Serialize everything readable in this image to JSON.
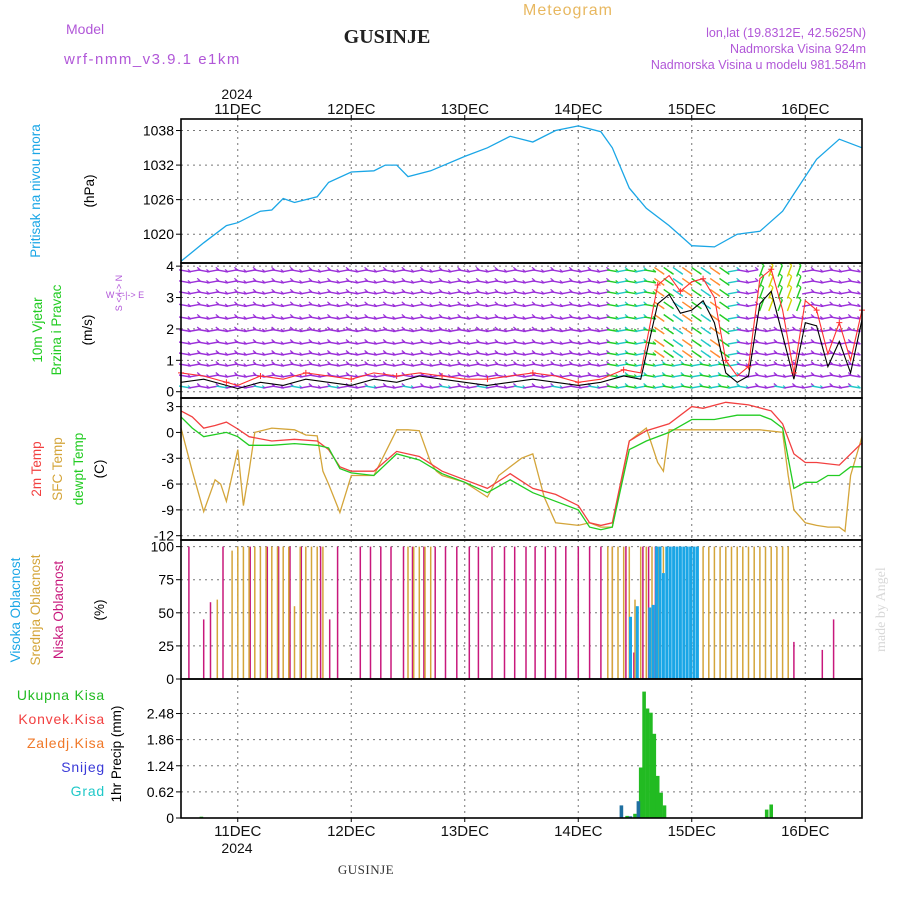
{
  "header": {
    "title": "GUSINJE",
    "model_label": "Model",
    "model_name": "wrf-nmm_v3.9.1  e1km",
    "meteogram_label": "Meteogram",
    "coords": "lon,lat (19.8312E, 42.5625N)",
    "elevation": "Nadmorska Visina 924m",
    "model_elevation": "Nadmorska Visina u modelu 981.584m"
  },
  "footer": {
    "location": "GUSINJE",
    "watermark": "made by Angel"
  },
  "colors": {
    "pressure": "#1aa6e6",
    "wind_speed": "#000000",
    "wind_gust": "#ff3030",
    "wind_barbs": "#9b30d9",
    "temp_2m": "#f24040",
    "temp_sfc": "#d4a53a",
    "dewpoint": "#22cc22",
    "cloud_high": "#1aa6e6",
    "cloud_mid": "#d4a53a",
    "cloud_low": "#c8187c",
    "precip_total": "#22bb22",
    "precip_conv": "#f24040",
    "precip_frozen": "#f07828",
    "precip_snow": "#3a3ad8",
    "precip_grad": "#20c8c8"
  },
  "chart_data": [
    {
      "type": "line",
      "panel": "pressure",
      "ylabel_main": "Pritisak na nivou mora",
      "ylabel_unit": "(hPa)",
      "ylim": [
        1015,
        1040
      ],
      "yticks": [
        1020,
        1026,
        1032,
        1038
      ],
      "x_range_days": [
        10.5,
        16.5
      ],
      "series": [
        {
          "x": [
            10.5,
            10.7,
            10.9,
            11.0,
            11.2,
            11.3,
            11.4,
            11.5,
            11.7,
            11.8,
            12.0,
            12.2,
            12.3,
            12.4,
            12.5,
            12.7,
            13.0,
            13.2,
            13.4,
            13.6,
            13.8,
            14.0,
            14.2,
            14.3,
            14.45,
            14.6,
            14.8,
            15.0,
            15.2,
            15.4,
            15.6,
            15.8,
            15.9,
            16.1,
            16.3,
            16.5
          ],
          "y": [
            1015.3,
            1018.5,
            1021.5,
            1022,
            1024,
            1024.2,
            1026.2,
            1025.5,
            1026.5,
            1029,
            1030.8,
            1031,
            1032,
            1032,
            1030,
            1031,
            1033.5,
            1035,
            1037,
            1036,
            1038,
            1038.8,
            1037.8,
            1035,
            1028,
            1024.5,
            1021.5,
            1018,
            1017.8,
            1020,
            1020.5,
            1024,
            1027,
            1033,
            1036.5,
            1035
          ]
        }
      ]
    },
    {
      "type": "line",
      "panel": "wind",
      "ylabel_main": "10m Vjetar",
      "ylabel_sub": "Brzina i Pravac",
      "ylabel_unit": "(m/s)",
      "compass": "W <-|-> E",
      "compass_vertical": "S <-|-> N",
      "ylim": [
        -0.2,
        4.1
      ],
      "yticks": [
        0,
        1,
        2,
        3,
        4
      ],
      "x_range_days": [
        10.5,
        16.5
      ],
      "barb_rows": [
        0.15,
        0.5,
        0.85,
        1.2,
        1.55,
        1.95,
        2.35,
        2.75,
        3.15,
        3.5,
        3.85
      ],
      "series": [
        {
          "name": "speed",
          "x": [
            10.5,
            10.7,
            10.9,
            11.0,
            11.2,
            11.4,
            11.6,
            11.8,
            12.0,
            12.2,
            12.4,
            12.6,
            12.8,
            13.0,
            13.2,
            13.4,
            13.6,
            13.8,
            14.0,
            14.2,
            14.4,
            14.55,
            14.7,
            14.8,
            14.9,
            15.0,
            15.1,
            15.2,
            15.3,
            15.4,
            15.5,
            15.6,
            15.7,
            15.8,
            15.9,
            16.0,
            16.1,
            16.2,
            16.3,
            16.4,
            16.5
          ],
          "y": [
            0.3,
            0.4,
            0.2,
            0.1,
            0.3,
            0.2,
            0.4,
            0.3,
            0.2,
            0.4,
            0.3,
            0.5,
            0.4,
            0.3,
            0.2,
            0.3,
            0.4,
            0.3,
            0.2,
            0.3,
            0.5,
            0.4,
            2.8,
            3.1,
            2.5,
            2.6,
            2.9,
            2.2,
            0.6,
            0.3,
            0.5,
            2.8,
            3.2,
            1.8,
            0.4,
            2.2,
            2.1,
            0.8,
            1.6,
            0.6,
            2.3
          ]
        },
        {
          "name": "gust",
          "x": [
            10.5,
            10.7,
            10.9,
            11.0,
            11.2,
            11.4,
            11.6,
            11.8,
            12.0,
            12.2,
            12.4,
            12.6,
            12.8,
            13.0,
            13.2,
            13.4,
            13.6,
            13.8,
            14.0,
            14.2,
            14.4,
            14.55,
            14.7,
            14.8,
            14.9,
            15.0,
            15.1,
            15.2,
            15.3,
            15.4,
            15.5,
            15.6,
            15.7,
            15.8,
            15.9,
            16.0,
            16.1,
            16.2,
            16.3,
            16.4,
            16.5
          ],
          "y": [
            0.6,
            0.5,
            0.3,
            0.2,
            0.5,
            0.4,
            0.6,
            0.5,
            0.4,
            0.6,
            0.5,
            0.6,
            0.5,
            0.4,
            0.4,
            0.5,
            0.6,
            0.5,
            0.3,
            0.4,
            0.7,
            0.6,
            3.4,
            3.7,
            3.2,
            3.5,
            3.6,
            3.0,
            1.0,
            0.5,
            0.8,
            3.6,
            3.9,
            2.6,
            0.6,
            2.9,
            2.6,
            1.2,
            2.2,
            1.0,
            2.6
          ]
        }
      ]
    },
    {
      "type": "line",
      "panel": "temperature",
      "ylabel_lines": [
        "2m Temp",
        "SFC Temp",
        "dewpt Temp"
      ],
      "ylabel_unit": "(C)",
      "ylim": [
        -12.5,
        4
      ],
      "yticks": [
        -12,
        -9,
        -6,
        -3,
        0,
        3
      ],
      "x_range_days": [
        10.5,
        16.5
      ],
      "series": [
        {
          "name": "2m Temp",
          "x": [
            10.5,
            10.6,
            10.7,
            10.8,
            10.9,
            11.0,
            11.1,
            11.3,
            11.5,
            11.7,
            11.8,
            11.9,
            12.0,
            12.2,
            12.4,
            12.6,
            12.8,
            13.0,
            13.2,
            13.4,
            13.6,
            13.8,
            14.0,
            14.1,
            14.2,
            14.3,
            14.45,
            14.6,
            14.8,
            15.0,
            15.1,
            15.3,
            15.5,
            15.7,
            15.8,
            15.9,
            16.0,
            16.1,
            16.3,
            16.5
          ],
          "y": [
            2.5,
            1.8,
            0.5,
            0.8,
            1.2,
            0.4,
            -0.5,
            -1.0,
            -0.8,
            -1.0,
            -2.0,
            -4.0,
            -4.5,
            -4.5,
            -2.2,
            -2.8,
            -4.5,
            -5.5,
            -6.5,
            -4.8,
            -6.5,
            -7.2,
            -8.5,
            -10.5,
            -10.8,
            -10.5,
            -1.0,
            0.2,
            1.0,
            3.0,
            2.8,
            3.5,
            3.2,
            2.5,
            1.0,
            -2.5,
            -3.5,
            -3.5,
            -3.8,
            -1.2
          ]
        },
        {
          "name": "SFC Temp",
          "x": [
            10.5,
            10.6,
            10.7,
            10.8,
            10.85,
            10.9,
            11.0,
            11.05,
            11.1,
            11.15,
            11.3,
            11.5,
            11.6,
            11.7,
            11.75,
            11.8,
            11.9,
            12.0,
            12.2,
            12.4,
            12.5,
            12.6,
            12.7,
            12.75,
            12.8,
            13.0,
            13.2,
            13.3,
            13.5,
            13.6,
            13.65,
            13.7,
            13.8,
            14.0,
            14.1,
            14.2,
            14.3,
            14.45,
            14.6,
            14.7,
            14.75,
            14.8,
            15.0,
            15.2,
            15.4,
            15.6,
            15.8,
            15.85,
            15.9,
            16.0,
            16.1,
            16.2,
            16.3,
            16.35,
            16.4,
            16.5
          ],
          "y": [
            0.5,
            -4.5,
            -9.2,
            -5.5,
            -6.0,
            -8.0,
            -2.0,
            -8.5,
            -4.5,
            0.0,
            0.5,
            0.3,
            -0.3,
            -0.4,
            -4.5,
            -6.0,
            -9.3,
            -5.0,
            -5.0,
            0.3,
            0.3,
            0.2,
            -3.5,
            -4.5,
            -5.0,
            -5.8,
            -7.5,
            -5.0,
            -3.0,
            -2.5,
            -5.0,
            -7.5,
            -10.5,
            -10.8,
            -10.5,
            -11.0,
            -11.0,
            -1.0,
            0.5,
            -3.5,
            -4.5,
            0.3,
            0.3,
            0.3,
            0.3,
            0.3,
            0.0,
            -5.0,
            -9.0,
            -10.5,
            -10.8,
            -11.0,
            -11.0,
            -11.5,
            -5.0,
            -0.5
          ]
        },
        {
          "name": "dewpt Temp",
          "x": [
            10.5,
            10.6,
            10.7,
            10.9,
            11.0,
            11.1,
            11.3,
            11.5,
            11.7,
            11.8,
            11.9,
            12.0,
            12.2,
            12.4,
            12.6,
            12.8,
            13.0,
            13.2,
            13.4,
            13.6,
            13.8,
            14.0,
            14.1,
            14.2,
            14.3,
            14.45,
            14.6,
            14.8,
            15.0,
            15.2,
            15.4,
            15.6,
            15.7,
            15.8,
            15.85,
            15.9,
            16.0,
            16.1,
            16.2,
            16.3,
            16.4,
            16.5
          ],
          "y": [
            1.8,
            0.5,
            -0.5,
            0.0,
            -0.5,
            -1.5,
            -1.5,
            -1.3,
            -1.5,
            -1.8,
            -4.2,
            -4.7,
            -5.0,
            -2.5,
            -3.2,
            -4.8,
            -5.8,
            -7.0,
            -5.5,
            -7.0,
            -8.0,
            -9.0,
            -11.0,
            -11.3,
            -11.0,
            -2.0,
            -1.0,
            0.0,
            1.5,
            1.5,
            2.0,
            2.0,
            1.5,
            0.5,
            -3.0,
            -6.5,
            -5.8,
            -5.8,
            -5.0,
            -5.0,
            -4.0,
            -4.0
          ]
        }
      ]
    },
    {
      "type": "bar",
      "panel": "clouds",
      "ylabel_lines": [
        "Visoka Oblacnost",
        "Srednja Oblacnost",
        "Niska Oblacnost"
      ],
      "ylabel_unit": "(%)",
      "ylim": [
        0,
        105
      ],
      "yticks": [
        0,
        25,
        50,
        75,
        100
      ],
      "x_range_days": [
        10.5,
        16.5
      ],
      "series": [
        {
          "name": "Niska Oblacnost",
          "x": [
            10.57,
            10.7,
            10.76,
            10.87,
            11.11,
            11.26,
            11.36,
            11.46,
            11.56,
            11.73,
            11.81,
            11.88,
            12.08,
            12.17,
            12.26,
            12.35,
            12.46,
            12.54,
            12.64,
            12.74,
            12.83,
            12.93,
            13.04,
            13.12,
            13.24,
            13.35,
            13.44,
            13.54,
            13.62,
            13.71,
            13.8,
            13.89,
            14.0,
            14.1,
            14.2,
            14.3,
            14.42,
            14.49,
            14.57,
            14.62,
            14.68,
            14.84,
            15.9,
            16.15,
            16.25
          ],
          "values": [
            100,
            45,
            58,
            100,
            100,
            100,
            100,
            100,
            100,
            100,
            45,
            100,
            100,
            100,
            100,
            100,
            100,
            100,
            100,
            100,
            100,
            100,
            100,
            100,
            100,
            100,
            100,
            100,
            100,
            100,
            100,
            100,
            100,
            100,
            100,
            100,
            100,
            20,
            100,
            100,
            100,
            100,
            28,
            22,
            45
          ]
        },
        {
          "name": "Srednja Oblacnost",
          "x": [
            10.82,
            10.95,
            11.0,
            11.05,
            11.1,
            11.15,
            11.2,
            11.25,
            11.3,
            11.35,
            11.4,
            11.45,
            11.5,
            11.55,
            11.6,
            11.65,
            11.7,
            11.75,
            12.5,
            12.55,
            12.6,
            12.65,
            12.7,
            14.26,
            14.3,
            14.35,
            14.4,
            14.45,
            14.5,
            14.55,
            14.6,
            14.65,
            14.7,
            14.75,
            15.05,
            15.1,
            15.15,
            15.2,
            15.25,
            15.3,
            15.35,
            15.4,
            15.45,
            15.5,
            15.55,
            15.6,
            15.65,
            15.7,
            15.75,
            15.8,
            15.85
          ],
          "values": [
            60,
            97,
            100,
            100,
            100,
            100,
            100,
            100,
            100,
            100,
            100,
            100,
            55,
            100,
            100,
            100,
            100,
            100,
            100,
            100,
            100,
            100,
            100,
            100,
            100,
            100,
            100,
            100,
            60,
            100,
            100,
            100,
            100,
            100,
            100,
            100,
            100,
            100,
            100,
            100,
            100,
            100,
            100,
            100,
            100,
            100,
            100,
            100,
            100,
            100,
            100
          ]
        },
        {
          "name": "Visoka Oblacnost",
          "x": [
            14.46,
            14.52,
            14.63,
            14.66,
            14.69,
            14.72,
            14.75,
            14.78,
            14.81,
            14.84,
            14.87,
            14.9,
            14.93,
            14.96,
            14.99,
            15.02,
            15.05
          ],
          "values": [
            47,
            55,
            54,
            56,
            100,
            100,
            80,
            100,
            100,
            100,
            100,
            100,
            100,
            100,
            100,
            100,
            100
          ]
        }
      ]
    },
    {
      "type": "bar",
      "panel": "precip",
      "legend": [
        "Ukupna Kisa",
        "Konvek.Kisa",
        "Zaledj.Kisa",
        "Snijeg",
        "Grad"
      ],
      "ylabel_unit": "1hr Precip (mm)",
      "ylim": [
        0,
        3.3
      ],
      "yticks": [
        0,
        0.62,
        1.24,
        1.86,
        2.48
      ],
      "x_range_days": [
        10.5,
        16.5
      ],
      "series": [
        {
          "name": "Ukupna Kisa",
          "x": [
            10.68,
            14.43,
            14.5,
            14.55,
            14.58,
            14.61,
            14.64,
            14.67,
            14.7,
            14.73,
            14.76,
            15.66,
            15.7
          ],
          "values": [
            0.03,
            0.05,
            0.1,
            1.2,
            3.0,
            2.6,
            2.5,
            2.0,
            1.0,
            0.6,
            0.3,
            0.2,
            0.32
          ]
        },
        {
          "name": "Snijeg",
          "x": [
            14.38,
            14.46,
            14.53
          ],
          "values": [
            0.3,
            0.04,
            0.4
          ]
        }
      ]
    }
  ],
  "x_axis": {
    "year": "2024",
    "ticks": [
      "11DEC",
      "12DEC",
      "13DEC",
      "14DEC",
      "15DEC",
      "16DEC"
    ]
  }
}
